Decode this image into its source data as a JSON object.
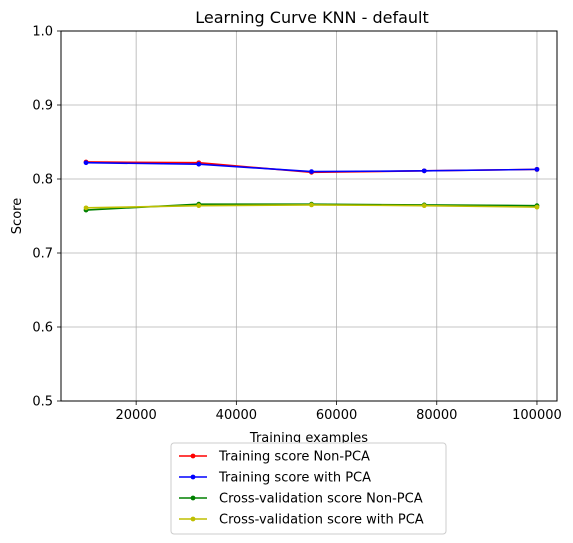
{
  "chart_data": {
    "type": "line",
    "title": "Learning Curve KNN - default",
    "xlabel": "Training examples",
    "ylabel": "Score",
    "xlim": [
      5000,
      104000
    ],
    "ylim": [
      0.5,
      1.0
    ],
    "xticks": [
      20000,
      40000,
      60000,
      80000,
      100000
    ],
    "yticks": [
      0.5,
      0.6,
      0.7,
      0.8,
      0.9,
      1.0
    ],
    "grid": true,
    "legend_position": "below plot",
    "x": [
      10000,
      32500,
      55000,
      77500,
      100000
    ],
    "series": [
      {
        "name": "Training score Non-PCA",
        "color": "#ff0000",
        "values": [
          0.823,
          0.822,
          0.809,
          0.811,
          0.813
        ]
      },
      {
        "name": "Training score with PCA",
        "color": "#0000ff",
        "values": [
          0.822,
          0.82,
          0.81,
          0.811,
          0.813
        ]
      },
      {
        "name": "Cross-validation score Non-PCA",
        "color": "#008000",
        "values": [
          0.758,
          0.766,
          0.766,
          0.765,
          0.764
        ]
      },
      {
        "name": "Cross-validation score with PCA",
        "color": "#bfbf00",
        "values": [
          0.761,
          0.764,
          0.765,
          0.764,
          0.762
        ]
      }
    ]
  }
}
